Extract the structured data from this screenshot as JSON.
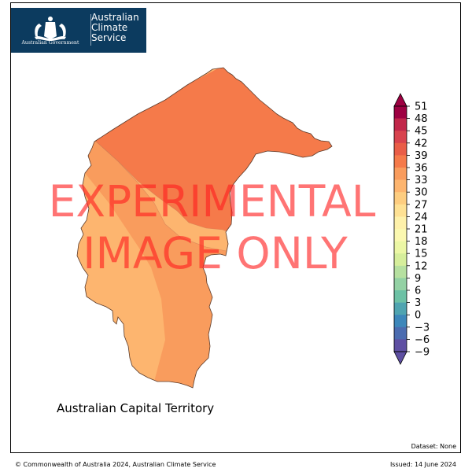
{
  "logo": {
    "government_text": "Australian Government",
    "service_lines": [
      "Australian",
      "Climate",
      "Service"
    ]
  },
  "map": {
    "region_label": "Australian Capital Territory",
    "zones": [
      {
        "name": "north-zone",
        "value_band": "36–39",
        "color": "#f57a4a"
      },
      {
        "name": "central-zone",
        "value_band": "33–36",
        "color": "#f99c5d"
      },
      {
        "name": "southwest-zone",
        "value_band": "30–33",
        "color": "#fdb56f"
      }
    ],
    "watermark": [
      "EXPERIMENTAL",
      "IMAGE ONLY"
    ]
  },
  "colorbar": {
    "ticks": [
      "51",
      "48",
      "45",
      "42",
      "39",
      "36",
      "33",
      "30",
      "27",
      "24",
      "21",
      "18",
      "15",
      "12",
      "9",
      "6",
      "3",
      "0",
      "−3",
      "−6",
      "−9"
    ],
    "colors": [
      "#9e0142",
      "#c1274a",
      "#d8434e",
      "#e95d47",
      "#f57a4a",
      "#f99c5d",
      "#fdb56f",
      "#fdcd80",
      "#fee194",
      "#fef1aa",
      "#fbf8b0",
      "#ecf7a5",
      "#d6ee9b",
      "#b6e0a0",
      "#93d1a4",
      "#6cc1a5",
      "#4fa4b0",
      "#3d87ba",
      "#4b6cb0",
      "#5e4fa2"
    ],
    "extend": "both"
  },
  "footer": {
    "dataset": "Dataset: None",
    "copyright": "© Commonwealth of Australia 2024, Australian Climate Service",
    "issued": "Issued: 14 June 2024"
  }
}
